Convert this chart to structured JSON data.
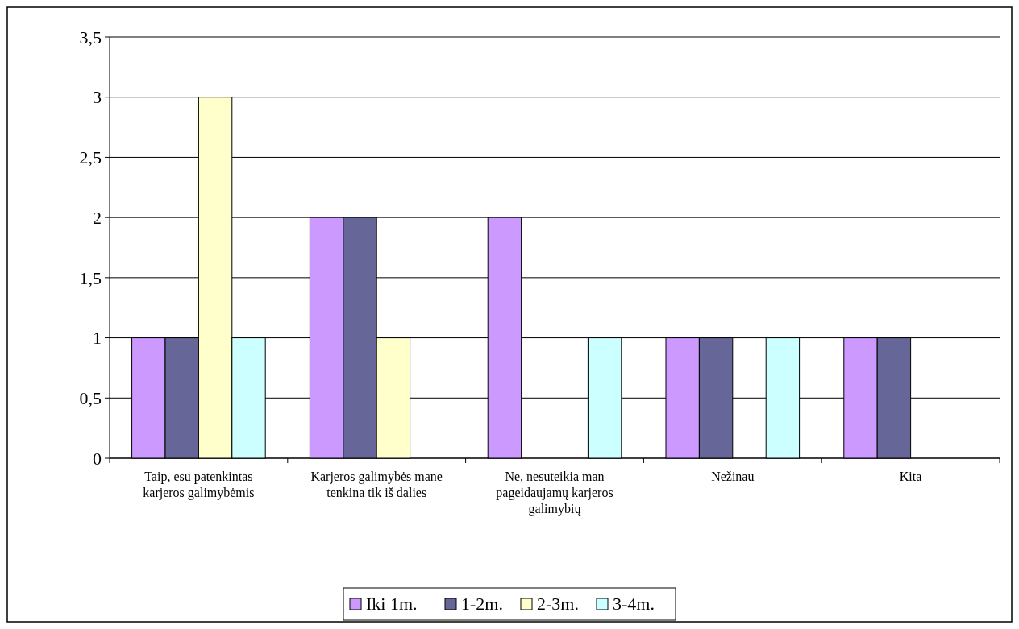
{
  "chart_data": {
    "type": "bar",
    "categories": [
      "Taip, esu patenkintas karjeros galimybėmis",
      "Karjeros galimybės mane tenkina tik iš dalies",
      "Ne, nesuteikia man pageidaujamų karjeros galimybių",
      "Nežinau",
      "Kita"
    ],
    "series": [
      {
        "name": "Iki 1m.",
        "color": "#cc99ff",
        "values": [
          1,
          2,
          2,
          1,
          1
        ]
      },
      {
        "name": "1-2m.",
        "color": "#666699",
        "values": [
          1,
          2,
          0,
          1,
          1
        ]
      },
      {
        "name": "2-3m.",
        "color": "#ffffcc",
        "values": [
          3,
          1,
          0,
          0,
          0
        ]
      },
      {
        "name": "3-4m.",
        "color": "#ccffff",
        "values": [
          1,
          0,
          1,
          1,
          0
        ]
      }
    ],
    "ylim": [
      0,
      3.5
    ],
    "yticks": [
      {
        "value": 0,
        "label": "0"
      },
      {
        "value": 0.5,
        "label": "0,5"
      },
      {
        "value": 1,
        "label": "1"
      },
      {
        "value": 1.5,
        "label": "1,5"
      },
      {
        "value": 2,
        "label": "2"
      },
      {
        "value": 2.5,
        "label": "2,5"
      },
      {
        "value": 3,
        "label": "3"
      },
      {
        "value": 3.5,
        "label": "3,5"
      }
    ],
    "grid": "y",
    "legend": "bottom"
  }
}
